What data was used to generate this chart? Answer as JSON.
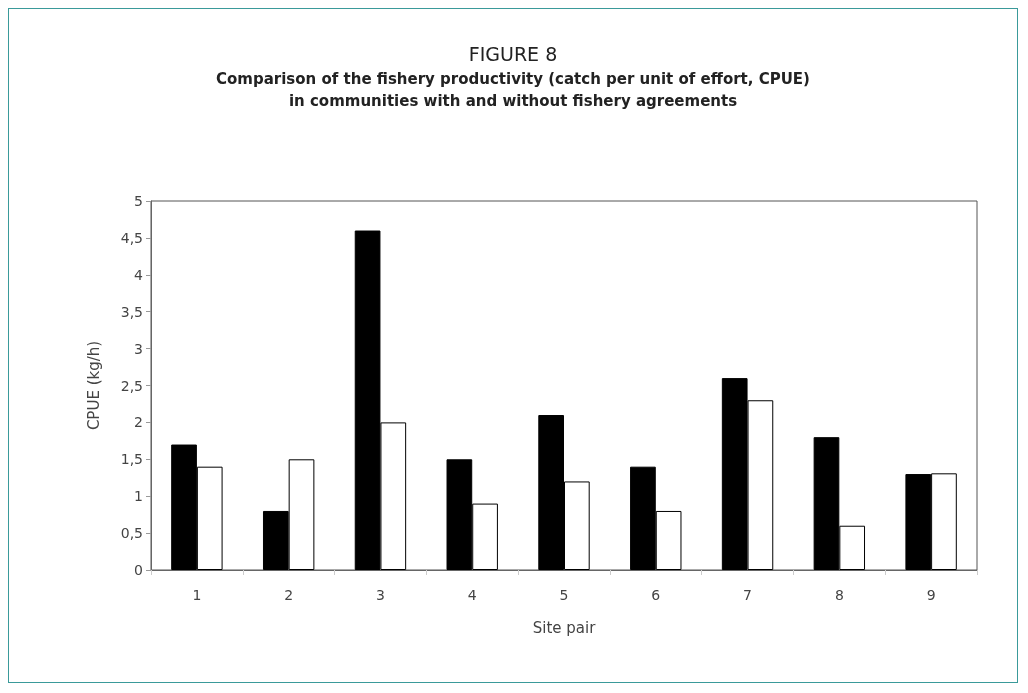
{
  "chart_data": {
    "type": "bar",
    "title": "FIGURE 8",
    "subtitle": "Comparison of the fishery productivity (catch per unit of effort, CPUE)\nin communities with and without fishery agreements",
    "xlabel": "Site pair",
    "ylabel": "CPUE (kg/h)",
    "categories": [
      "1",
      "2",
      "3",
      "4",
      "5",
      "6",
      "7",
      "8",
      "9"
    ],
    "series": [
      {
        "color": "#000000",
        "values": [
          1.7,
          0.8,
          4.6,
          1.5,
          2.1,
          1.4,
          2.6,
          1.8,
          1.3
        ]
      },
      {
        "color": "#ffffff",
        "values": [
          1.4,
          1.5,
          2.0,
          0.9,
          1.2,
          0.8,
          2.3,
          0.6,
          1.31
        ]
      }
    ],
    "ylim": [
      0,
      5
    ],
    "yticks": [
      0,
      {
        "value": 0.5,
        "label": "0,5"
      },
      1,
      {
        "value": 1.5,
        "label": "1,5"
      },
      2,
      {
        "value": 2.5,
        "label": "2,5"
      },
      3,
      {
        "value": 3.5,
        "label": "3,5"
      },
      4,
      {
        "value": 4.5,
        "label": "4,5"
      },
      5
    ],
    "grid": false
  }
}
